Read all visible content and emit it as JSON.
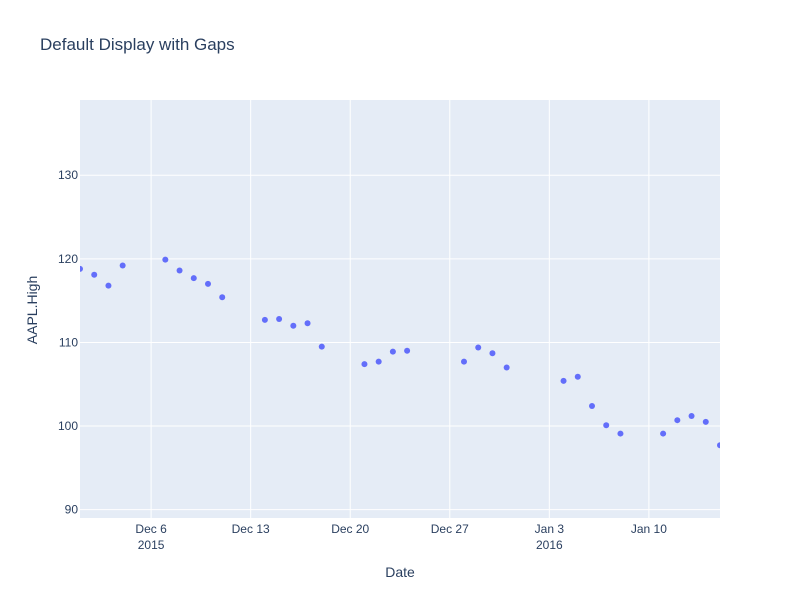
{
  "chart_data": {
    "type": "scatter",
    "title": "Default Display with Gaps",
    "xlabel": "Date",
    "ylabel": "AAPL.High",
    "xlim": [
      "2015-12-01",
      "2016-01-15"
    ],
    "ylim": [
      89,
      139
    ],
    "grid": true,
    "x_ticks": [
      {
        "date": "2015-12-06",
        "label": "Dec 6",
        "sublabel": "2015"
      },
      {
        "date": "2015-12-13",
        "label": "Dec 13",
        "sublabel": ""
      },
      {
        "date": "2015-12-20",
        "label": "Dec 20",
        "sublabel": ""
      },
      {
        "date": "2015-12-27",
        "label": "Dec 27",
        "sublabel": ""
      },
      {
        "date": "2016-01-03",
        "label": "Jan 3",
        "sublabel": "2016"
      },
      {
        "date": "2016-01-10",
        "label": "Jan 10",
        "sublabel": ""
      }
    ],
    "y_ticks": [
      90,
      100,
      110,
      120,
      130
    ],
    "series": [
      {
        "color": "#636efa",
        "points": [
          {
            "x": "2015-12-01",
            "y": 118.8
          },
          {
            "x": "2015-12-02",
            "y": 118.1
          },
          {
            "x": "2015-12-03",
            "y": 116.8
          },
          {
            "x": "2015-12-04",
            "y": 119.2
          },
          {
            "x": "2015-12-07",
            "y": 119.9
          },
          {
            "x": "2015-12-08",
            "y": 118.6
          },
          {
            "x": "2015-12-09",
            "y": 117.7
          },
          {
            "x": "2015-12-10",
            "y": 117.0
          },
          {
            "x": "2015-12-11",
            "y": 115.4
          },
          {
            "x": "2015-12-14",
            "y": 112.7
          },
          {
            "x": "2015-12-15",
            "y": 112.8
          },
          {
            "x": "2015-12-16",
            "y": 112.0
          },
          {
            "x": "2015-12-17",
            "y": 112.3
          },
          {
            "x": "2015-12-18",
            "y": 109.5
          },
          {
            "x": "2015-12-21",
            "y": 107.4
          },
          {
            "x": "2015-12-22",
            "y": 107.7
          },
          {
            "x": "2015-12-23",
            "y": 108.9
          },
          {
            "x": "2015-12-24",
            "y": 109.0
          },
          {
            "x": "2015-12-28",
            "y": 107.7
          },
          {
            "x": "2015-12-29",
            "y": 109.4
          },
          {
            "x": "2015-12-30",
            "y": 108.7
          },
          {
            "x": "2015-12-31",
            "y": 107.0
          },
          {
            "x": "2016-01-04",
            "y": 105.4
          },
          {
            "x": "2016-01-05",
            "y": 105.9
          },
          {
            "x": "2016-01-06",
            "y": 102.4
          },
          {
            "x": "2016-01-07",
            "y": 100.1
          },
          {
            "x": "2016-01-08",
            "y": 99.1
          },
          {
            "x": "2016-01-11",
            "y": 99.1
          },
          {
            "x": "2016-01-12",
            "y": 100.7
          },
          {
            "x": "2016-01-13",
            "y": 101.2
          },
          {
            "x": "2016-01-14",
            "y": 100.5
          },
          {
            "x": "2016-01-15",
            "y": 97.7
          }
        ]
      }
    ]
  }
}
